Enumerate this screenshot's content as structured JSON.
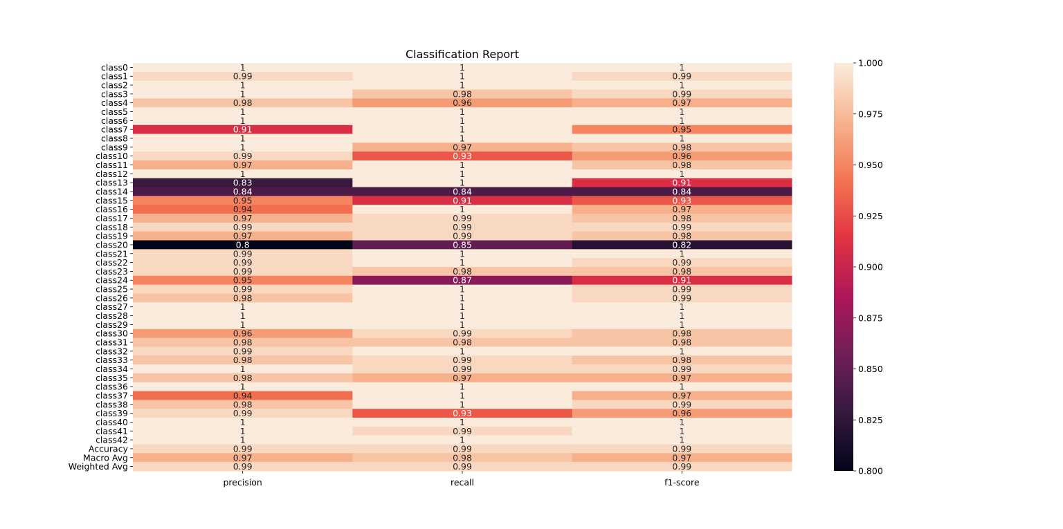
{
  "chart_data": {
    "type": "heatmap",
    "title": "Classification Report",
    "columns": [
      "precision",
      "recall",
      "f1-score"
    ],
    "rows": [
      "class0",
      "class1",
      "class2",
      "class3",
      "class4",
      "class5",
      "class6",
      "class7",
      "class8",
      "class9",
      "class10",
      "class11",
      "class12",
      "class13",
      "class14",
      "class15",
      "class16",
      "class17",
      "class18",
      "class19",
      "class20",
      "class21",
      "class22",
      "class23",
      "class24",
      "class25",
      "class26",
      "class27",
      "class28",
      "class29",
      "class30",
      "class31",
      "class32",
      "class33",
      "class34",
      "class35",
      "class36",
      "class37",
      "class38",
      "class39",
      "class40",
      "class41",
      "class42",
      "Accuracy",
      "Macro Avg",
      "Weighted Avg"
    ],
    "values": [
      [
        1.0,
        1.0,
        1.0
      ],
      [
        0.99,
        1.0,
        0.99
      ],
      [
        1.0,
        1.0,
        1.0
      ],
      [
        1.0,
        0.98,
        0.99
      ],
      [
        0.98,
        0.96,
        0.97
      ],
      [
        1.0,
        1.0,
        1.0
      ],
      [
        1.0,
        1.0,
        1.0
      ],
      [
        0.91,
        1.0,
        0.95
      ],
      [
        1.0,
        1.0,
        1.0
      ],
      [
        1.0,
        0.97,
        0.98
      ],
      [
        0.99,
        0.93,
        0.96
      ],
      [
        0.97,
        1.0,
        0.98
      ],
      [
        1.0,
        1.0,
        1.0
      ],
      [
        0.83,
        1.0,
        0.91
      ],
      [
        0.84,
        0.84,
        0.84
      ],
      [
        0.95,
        0.91,
        0.93
      ],
      [
        0.94,
        1.0,
        0.97
      ],
      [
        0.97,
        0.99,
        0.98
      ],
      [
        0.99,
        0.99,
        0.99
      ],
      [
        0.97,
        0.99,
        0.98
      ],
      [
        0.8,
        0.85,
        0.82
      ],
      [
        0.99,
        1.0,
        1.0
      ],
      [
        0.99,
        1.0,
        0.99
      ],
      [
        0.99,
        0.98,
        0.98
      ],
      [
        0.95,
        0.87,
        0.91
      ],
      [
        0.99,
        1.0,
        0.99
      ],
      [
        0.98,
        1.0,
        0.99
      ],
      [
        1.0,
        1.0,
        1.0
      ],
      [
        1.0,
        1.0,
        1.0
      ],
      [
        1.0,
        1.0,
        1.0
      ],
      [
        0.96,
        0.99,
        0.98
      ],
      [
        0.98,
        0.98,
        0.98
      ],
      [
        0.99,
        1.0,
        1.0
      ],
      [
        0.98,
        0.99,
        0.98
      ],
      [
        1.0,
        0.99,
        0.99
      ],
      [
        0.98,
        0.97,
        0.97
      ],
      [
        1.0,
        1.0,
        1.0
      ],
      [
        0.94,
        1.0,
        0.97
      ],
      [
        0.98,
        1.0,
        0.99
      ],
      [
        0.99,
        0.93,
        0.96
      ],
      [
        1.0,
        1.0,
        1.0
      ],
      [
        1.0,
        0.99,
        1.0
      ],
      [
        1.0,
        1.0,
        1.0
      ],
      [
        0.99,
        0.99,
        0.99
      ],
      [
        0.97,
        0.98,
        0.97
      ],
      [
        0.99,
        0.99,
        0.99
      ]
    ],
    "labels": [
      [
        "1",
        "1",
        "1"
      ],
      [
        "0.99",
        "1",
        "0.99"
      ],
      [
        "1",
        "1",
        "1"
      ],
      [
        "1",
        "0.98",
        "0.99"
      ],
      [
        "0.98",
        "0.96",
        "0.97"
      ],
      [
        "1",
        "1",
        "1"
      ],
      [
        "1",
        "1",
        "1"
      ],
      [
        "0.91",
        "1",
        "0.95"
      ],
      [
        "1",
        "1",
        "1"
      ],
      [
        "1",
        "0.97",
        "0.98"
      ],
      [
        "0.99",
        "0.93",
        "0.96"
      ],
      [
        "0.97",
        "1",
        "0.98"
      ],
      [
        "1",
        "1",
        "1"
      ],
      [
        "0.83",
        "1",
        "0.91"
      ],
      [
        "0.84",
        "0.84",
        "0.84"
      ],
      [
        "0.95",
        "0.91",
        "0.93"
      ],
      [
        "0.94",
        "1",
        "0.97"
      ],
      [
        "0.97",
        "0.99",
        "0.98"
      ],
      [
        "0.99",
        "0.99",
        "0.99"
      ],
      [
        "0.97",
        "0.99",
        "0.98"
      ],
      [
        "0.8",
        "0.85",
        "0.82"
      ],
      [
        "0.99",
        "1",
        "1"
      ],
      [
        "0.99",
        "1",
        "0.99"
      ],
      [
        "0.99",
        "0.98",
        "0.98"
      ],
      [
        "0.95",
        "0.87",
        "0.91"
      ],
      [
        "0.99",
        "1",
        "0.99"
      ],
      [
        "0.98",
        "1",
        "0.99"
      ],
      [
        "1",
        "1",
        "1"
      ],
      [
        "1",
        "1",
        "1"
      ],
      [
        "1",
        "1",
        "1"
      ],
      [
        "0.96",
        "0.99",
        "0.98"
      ],
      [
        "0.98",
        "0.98",
        "0.98"
      ],
      [
        "0.99",
        "1",
        "1"
      ],
      [
        "0.98",
        "0.99",
        "0.98"
      ],
      [
        "1",
        "0.99",
        "0.99"
      ],
      [
        "0.98",
        "0.97",
        "0.97"
      ],
      [
        "1",
        "1",
        "1"
      ],
      [
        "0.94",
        "1",
        "0.97"
      ],
      [
        "0.98",
        "1",
        "0.99"
      ],
      [
        "0.99",
        "0.93",
        "0.96"
      ],
      [
        "1",
        "1",
        "1"
      ],
      [
        "1",
        "0.99",
        "1"
      ],
      [
        "1",
        "1",
        "1"
      ],
      [
        "0.99",
        "0.99",
        "0.99"
      ],
      [
        "0.97",
        "0.98",
        "0.97"
      ],
      [
        "0.99",
        "0.99",
        "0.99"
      ]
    ],
    "colorbar": {
      "vmin": 0.8,
      "vmax": 1.0,
      "ticks": [
        "0.800",
        "0.825",
        "0.850",
        "0.875",
        "0.900",
        "0.925",
        "0.950",
        "0.975",
        "1.000"
      ],
      "colormap_stops": [
        "#03051a",
        "#35193e",
        "#701f57",
        "#ad1759",
        "#e13342",
        "#f37651",
        "#f6b48f",
        "#faebdd"
      ]
    },
    "grid": false
  }
}
